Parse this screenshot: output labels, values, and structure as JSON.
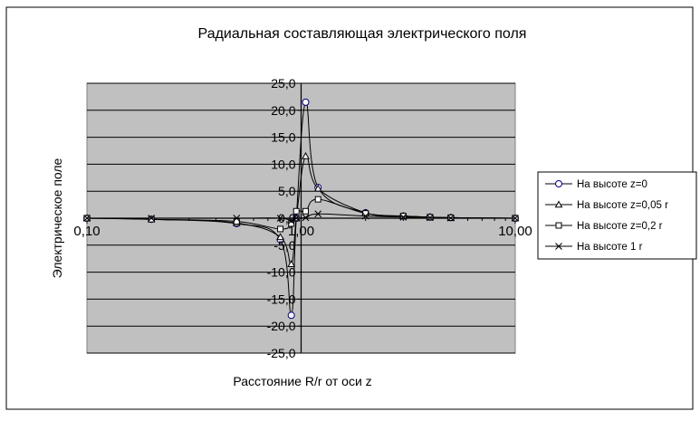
{
  "chart_data": {
    "type": "line",
    "title": "Радиальная составляющая электрического поля",
    "xlabel": "Расстояние R/r от оси z",
    "ylabel": "Электрическое поле",
    "x_scale": "log",
    "xlim": [
      0.1,
      10
    ],
    "ylim": [
      -25,
      25
    ],
    "x_tick_labels": [
      "0,10",
      "1,00",
      "10,00"
    ],
    "y_ticks": [
      25,
      20,
      15,
      10,
      5,
      0,
      -5,
      -10,
      -15,
      -20,
      -25
    ],
    "y_tick_labels": [
      "25,0",
      "20,0",
      "15,0",
      "10,0",
      "5,0",
      "0,0",
      "-5,0",
      "-10,0",
      "-15,0",
      "-20,0",
      "-25,0"
    ],
    "grid": true,
    "plot_background": "#c0c0c0",
    "legend_position": "right",
    "series": [
      {
        "name": "На высоте z=0",
        "marker": "circle",
        "x": [
          0.1,
          0.2,
          0.5,
          0.8,
          0.9,
          0.95,
          1.05,
          1.2,
          2.0,
          3.0,
          4.0,
          5.0,
          10.0
        ],
        "y": [
          0.0,
          -0.2,
          -1.0,
          -4.0,
          -18.0,
          0.0,
          21.5,
          5.7,
          1.0,
          0.4,
          0.2,
          0.1,
          0.0
        ]
      },
      {
        "name": "На высоте z=0,05 r",
        "marker": "triangle",
        "x": [
          0.1,
          0.2,
          0.5,
          0.8,
          0.9,
          0.95,
          1.05,
          1.2,
          2.0,
          3.0,
          4.0,
          5.0,
          10.0
        ],
        "y": [
          0.0,
          -0.2,
          -0.9,
          -3.5,
          -8.5,
          0.0,
          11.5,
          5.5,
          1.0,
          0.4,
          0.2,
          0.1,
          0.0
        ]
      },
      {
        "name": "На высоте z=0,2 r",
        "marker": "square",
        "x": [
          0.1,
          0.2,
          0.5,
          0.8,
          0.9,
          0.95,
          1.05,
          1.2,
          2.0,
          3.0,
          4.0,
          5.0,
          10.0
        ],
        "y": [
          0.0,
          -0.2,
          -0.6,
          -2.0,
          -1.0,
          1.3,
          1.3,
          3.5,
          0.9,
          0.4,
          0.2,
          0.1,
          0.0
        ]
      },
      {
        "name": "На высоте 1 r",
        "marker": "x",
        "x": [
          0.1,
          0.2,
          0.5,
          0.8,
          0.9,
          0.95,
          1.05,
          1.2,
          2.0,
          3.0,
          4.0,
          5.0,
          10.0
        ],
        "y": [
          0.0,
          0.0,
          0.0,
          0.0,
          -0.5,
          0.0,
          0.1,
          0.8,
          0.4,
          0.2,
          0.1,
          0.05,
          0.0
        ]
      }
    ]
  }
}
